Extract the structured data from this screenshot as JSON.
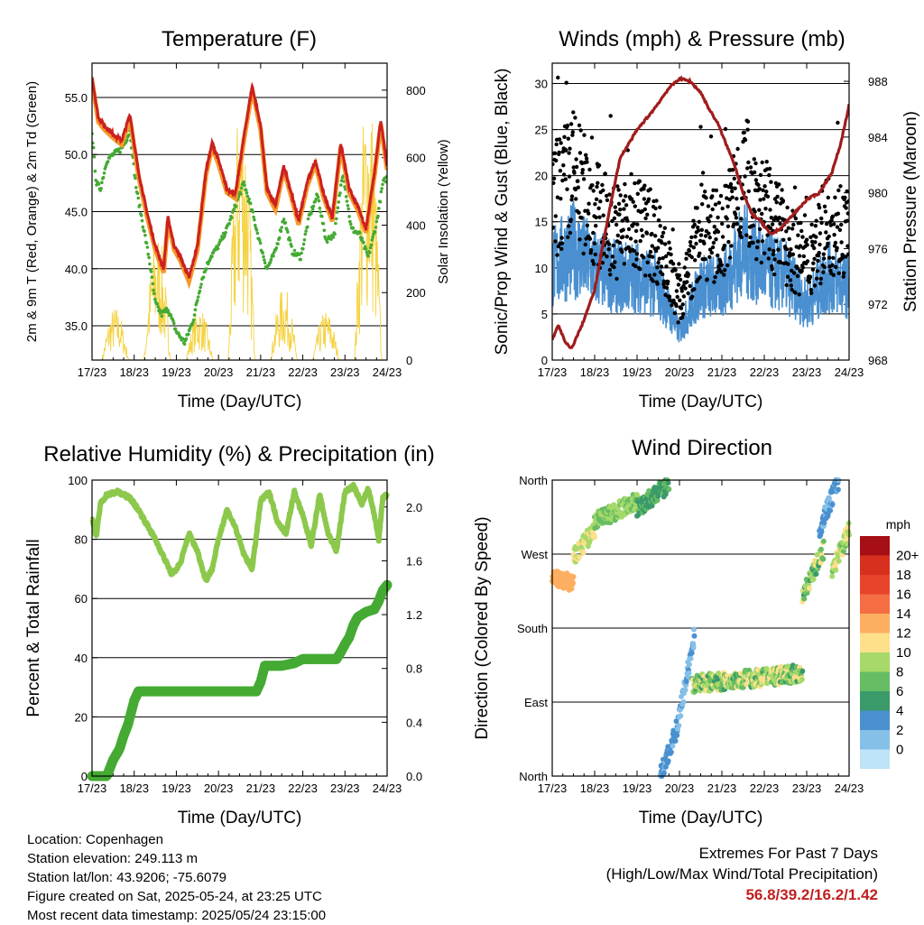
{
  "chart_data": [
    {
      "type": "line",
      "title": "Temperature (F)",
      "xlabel": "Time (Day/UTC)",
      "ylabel": "2m & 9m T (Red, Orange) & 2m Td (Green)",
      "y2label": "Solar Insolation (Yellow)",
      "x_ticks": [
        "17/23",
        "18/23",
        "19/23",
        "20/23",
        "21/23",
        "22/23",
        "23/23",
        "24/23"
      ],
      "ylim": [
        32,
        58
      ],
      "y_ticks": [
        "35.0",
        "40.0",
        "45.0",
        "50.0",
        "55.0"
      ],
      "y_tick_values": [
        35,
        40,
        45,
        50,
        55
      ],
      "y2lim": [
        0,
        880
      ],
      "y2_ticks": [
        "0",
        "200",
        "400",
        "600",
        "800"
      ],
      "y2_tick_values": [
        0,
        200,
        400,
        600,
        800
      ],
      "colors": {
        "t2m": "#cc2020",
        "t9m": "#f59a2a",
        "td2m": "#44aa33",
        "solar": "#f5d240"
      },
      "series": [
        {
          "key": "t2m",
          "x": [
            0,
            0.15,
            0.3,
            0.5,
            0.7,
            0.9,
            1.1,
            1.3,
            1.5,
            1.7,
            1.8,
            1.95,
            2.1,
            2.3,
            2.5,
            2.7,
            2.85,
            3.0,
            3.2,
            3.4,
            3.6,
            3.8,
            4.0,
            4.15,
            4.35,
            4.55,
            4.7,
            4.9,
            5.1,
            5.3,
            5.5,
            5.7,
            5.9,
            6.1,
            6.3,
            6.5,
            6.7,
            6.85,
            7.0
          ],
          "values": [
            56.8,
            53.2,
            52.5,
            51.8,
            51.2,
            53.5,
            48.5,
            45.0,
            42.0,
            40.0,
            44.5,
            42.0,
            41.0,
            39.2,
            42.0,
            48.5,
            51.0,
            49.5,
            47.0,
            46.5,
            51.5,
            56.0,
            52.5,
            47.0,
            45.5,
            49.0,
            47.0,
            44.2,
            47.5,
            49.5,
            46.5,
            44.5,
            51.0,
            47.0,
            45.5,
            43.5,
            48.5,
            53.0,
            49.0
          ]
        },
        {
          "key": "td2m",
          "x": [
            0,
            0.1,
            0.2,
            0.35,
            0.5,
            0.7,
            0.9,
            1.05,
            1.2,
            1.35,
            1.5,
            1.65,
            1.8,
            2.0,
            2.2,
            2.4,
            2.6,
            2.8,
            3.0,
            3.2,
            3.4,
            3.6,
            3.8,
            4.0,
            4.15,
            4.35,
            4.55,
            4.75,
            4.95,
            5.15,
            5.35,
            5.55,
            5.75,
            5.95,
            6.15,
            6.35,
            6.55,
            6.75,
            6.9,
            7.0
          ],
          "values": [
            52.0,
            47.5,
            47.0,
            49.5,
            50.0,
            50.5,
            52.0,
            47.0,
            44.0,
            41.0,
            37.0,
            36.0,
            36.5,
            34.5,
            33.5,
            35.5,
            39.0,
            41.0,
            42.0,
            43.5,
            45.5,
            47.5,
            45.0,
            42.0,
            40.0,
            41.5,
            44.5,
            41.5,
            41.0,
            44.5,
            46.5,
            42.5,
            43.0,
            48.5,
            43.5,
            43.0,
            41.0,
            44.0,
            47.5,
            48.0
          ]
        },
        {
          "key": "solar",
          "days": [
            0.55,
            1.55,
            2.55,
            3.55,
            4.55,
            5.55,
            6.55
          ],
          "peaks": [
            160,
            390,
            160,
            830,
            220,
            150,
            860
          ]
        }
      ]
    },
    {
      "type": "scatter",
      "title": "Winds (mph) & Pressure (mb)",
      "xlabel": "Time (Day/UTC)",
      "ylabel": "Sonic/Prop Wind & Gust (Blue, Black)",
      "y2label": "Station Pressure (Maroon)",
      "x_ticks": [
        "17/23",
        "18/23",
        "19/23",
        "20/23",
        "21/23",
        "22/23",
        "23/23",
        "24/23"
      ],
      "ylim": [
        0,
        32.2
      ],
      "y_ticks": [
        "0",
        "5",
        "10",
        "15",
        "20",
        "25",
        "30"
      ],
      "y_tick_values": [
        0,
        5,
        10,
        15,
        20,
        25,
        30
      ],
      "y2lim": [
        968,
        989.3
      ],
      "y2_ticks": [
        "968",
        "972",
        "976",
        "980",
        "984",
        "988"
      ],
      "y2_tick_values": [
        968,
        972,
        976,
        980,
        984,
        988
      ],
      "colors": {
        "wind": "#4a90d0",
        "gust": "#000000",
        "pressure": "#a01c1c"
      },
      "series": [
        {
          "key": "wind",
          "x": [
            0,
            0.5,
            1,
            1.5,
            2,
            2.5,
            3,
            3.5,
            4,
            4.5,
            5,
            5.5,
            6,
            6.5,
            7
          ],
          "values": [
            10,
            12,
            10,
            9,
            9,
            8,
            3,
            8,
            8,
            12,
            10,
            9,
            6,
            9,
            8
          ]
        },
        {
          "key": "gust",
          "x": [
            0,
            0.5,
            1,
            1.5,
            2,
            2.5,
            3,
            3.5,
            4,
            4.5,
            5,
            5.5,
            6,
            6.5,
            7
          ],
          "values": [
            17,
            20,
            16,
            14,
            15,
            13,
            6,
            14,
            13,
            20,
            16,
            13,
            10,
            15,
            14
          ]
        },
        {
          "key": "pressure",
          "x": [
            0,
            0.15,
            0.3,
            0.45,
            0.7,
            1.0,
            1.3,
            1.6,
            2.0,
            2.4,
            2.75,
            3.0,
            3.25,
            3.5,
            3.7,
            3.9,
            4.1,
            4.3,
            4.5,
            4.7,
            4.9,
            5.15,
            5.4,
            5.7,
            6.0,
            6.3,
            6.6,
            6.8,
            7.0
          ],
          "values": [
            969.5,
            970.5,
            969.3,
            968.8,
            970.5,
            973.0,
            978.0,
            982.5,
            984.5,
            986.0,
            987.5,
            988.2,
            988.0,
            987.2,
            986.0,
            985.0,
            983.5,
            982.0,
            980.0,
            978.5,
            978.0,
            977.0,
            977.5,
            978.5,
            979.5,
            980.0,
            981.5,
            983.5,
            986.3
          ]
        }
      ]
    },
    {
      "type": "scatter",
      "title": "Relative Humidity (%) & Precipitation (in)",
      "xlabel": "Time (Day/UTC)",
      "ylabel": "Percent & Total Rainfall",
      "x_ticks": [
        "17/23",
        "18/23",
        "19/23",
        "20/23",
        "21/23",
        "22/23",
        "23/23",
        "24/23"
      ],
      "ylim": [
        0,
        100
      ],
      "y_ticks": [
        "0",
        "20",
        "40",
        "60",
        "80",
        "100"
      ],
      "y_tick_values": [
        0,
        20,
        40,
        60,
        80,
        100
      ],
      "y2lim": [
        0,
        2.2
      ],
      "y2_ticks": [
        "0.0",
        "0.4",
        "0.8",
        "1.2",
        "1.6",
        "2.0"
      ],
      "y2_tick_values": [
        0,
        0.4,
        0.8,
        1.2,
        1.6,
        2.0
      ],
      "colors": {
        "rh": "#8cc84b",
        "precip": "#44aa33"
      },
      "series": [
        {
          "key": "rh",
          "x": [
            0,
            0.1,
            0.2,
            0.35,
            0.6,
            0.9,
            1.1,
            1.3,
            1.5,
            1.7,
            1.9,
            2.1,
            2.3,
            2.5,
            2.7,
            2.85,
            3.0,
            3.2,
            3.4,
            3.6,
            3.8,
            4.0,
            4.2,
            4.4,
            4.6,
            4.8,
            5.0,
            5.2,
            5.4,
            5.6,
            5.8,
            6.0,
            6.2,
            6.4,
            6.55,
            6.7,
            6.8,
            6.9,
            7.0
          ],
          "values": [
            87,
            81,
            92,
            95,
            96,
            94,
            90,
            85,
            80,
            74,
            68,
            72,
            82,
            76,
            66,
            70,
            80,
            90,
            84,
            75,
            70,
            93,
            96,
            86,
            82,
            96,
            88,
            78,
            95,
            82,
            76,
            96,
            98,
            92,
            97,
            88,
            80,
            94,
            95
          ]
        },
        {
          "key": "precip",
          "x": [
            0,
            0.35,
            0.5,
            0.65,
            0.75,
            0.85,
            0.95,
            1.0,
            1.1,
            1.5,
            2.0,
            2.5,
            3.0,
            3.5,
            3.9,
            4.0,
            4.1,
            4.3,
            4.5,
            4.8,
            5.0,
            5.5,
            5.8,
            5.9,
            6.0,
            6.1,
            6.2,
            6.3,
            6.5,
            6.7,
            6.8,
            6.9,
            7.0
          ],
          "values": [
            0,
            0,
            0.12,
            0.2,
            0.3,
            0.38,
            0.5,
            0.56,
            0.63,
            0.63,
            0.63,
            0.63,
            0.63,
            0.63,
            0.63,
            0.7,
            0.82,
            0.82,
            0.82,
            0.84,
            0.87,
            0.87,
            0.87,
            0.92,
            0.98,
            1.03,
            1.12,
            1.18,
            1.22,
            1.24,
            1.3,
            1.38,
            1.42
          ]
        }
      ]
    },
    {
      "type": "scatter",
      "title": "Wind Direction",
      "xlabel": "Time (Day/UTC)",
      "ylabel": "Direction (Colored By Speed)",
      "x_ticks": [
        "17/23",
        "18/23",
        "19/23",
        "20/23",
        "21/23",
        "22/23",
        "23/23",
        "24/23"
      ],
      "ylim": [
        0,
        360
      ],
      "y_ticks": [
        "North",
        "East",
        "South",
        "West",
        "North"
      ],
      "y_tick_values": [
        0,
        90,
        180,
        270,
        360
      ],
      "legend_title": "mph",
      "legend_labels": [
        "20+",
        "18",
        "16",
        "14",
        "12",
        "10",
        "8",
        "6",
        "4",
        "2",
        "0"
      ],
      "legend_colors": [
        "#a50f15",
        "#d7301f",
        "#e8432b",
        "#f46d43",
        "#fdae61",
        "#fee08b",
        "#a6d96a",
        "#66bd63",
        "#3a9a6a",
        "#4a90d0",
        "#85c0e8",
        "#bfe3f7"
      ],
      "legend_placement": "right",
      "groups": [
        {
          "x": [
            0,
            0.5
          ],
          "dir": [
            240,
            235
          ],
          "speed": [
            14,
            15
          ]
        },
        {
          "x": [
            0.5,
            1.0
          ],
          "dir": [
            265,
            300
          ],
          "speed": [
            10,
            12
          ]
        },
        {
          "x": [
            1.0,
            2.0
          ],
          "dir": [
            310,
            335
          ],
          "speed": [
            8,
            11
          ]
        },
        {
          "x": [
            2.0,
            2.75
          ],
          "dir": [
            325,
            355
          ],
          "speed": [
            5,
            8
          ]
        },
        {
          "x": [
            2.55,
            2.95
          ],
          "dir": [
            0,
            60
          ],
          "speed": [
            2,
            5
          ]
        },
        {
          "x": [
            2.95,
            3.35
          ],
          "dir": [
            60,
            170
          ],
          "speed": [
            1,
            4
          ]
        },
        {
          "x": [
            3.3,
            5.9
          ],
          "dir": [
            112,
            125
          ],
          "speed": [
            6,
            13
          ]
        },
        {
          "x": [
            5.9,
            6.4
          ],
          "dir": [
            220,
            275
          ],
          "speed": [
            6,
            12
          ]
        },
        {
          "x": [
            6.3,
            6.75
          ],
          "dir": [
            300,
            360
          ],
          "speed": [
            2,
            5
          ]
        },
        {
          "x": [
            6.6,
            7.0
          ],
          "dir": [
            250,
            300
          ],
          "speed": [
            8,
            13
          ]
        }
      ]
    }
  ],
  "info": {
    "location": "Location: Copenhagen",
    "elevation": "Station elevation: 249.113 m",
    "latlon": "Station lat/lon: 43.9206; -75.6079",
    "created": "Figure created on Sat, 2025-05-24, at 23:25 UTC",
    "recent": "Most recent data timestamp: 2025/05/24 23:15:00"
  },
  "extremes": {
    "title": "Extremes For Past 7 Days",
    "subtitle": "(High/Low/Max Wind/Total Precipitation)",
    "values": "56.8/39.2/16.2/1.42"
  }
}
